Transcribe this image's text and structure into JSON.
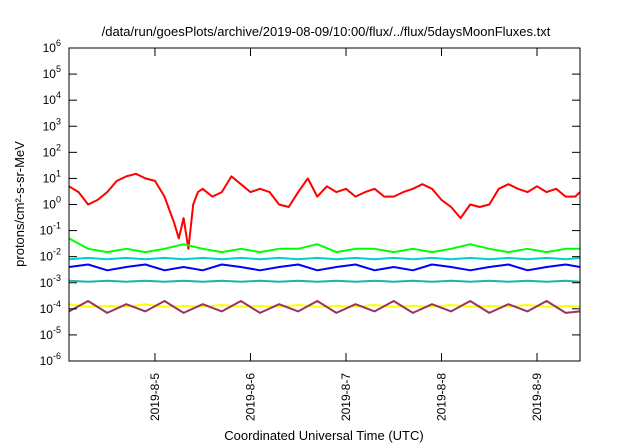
{
  "chart_data": {
    "type": "line",
    "title": "/data/run/goesPlots/archive/2019-08-09/10:00/flux/../flux/5daysMoonFluxes.txt",
    "xlabel": "Coordinated Universal Time (UTC)",
    "ylabel": "protons/cm²-s-sr-MeV",
    "yscale": "log",
    "ylim": [
      1e-06,
      1000000.0
    ],
    "xlim": [
      4.1,
      9.45
    ],
    "x_unit": "day of August 2019",
    "xticks": [
      {
        "x": 5,
        "label": "2019-8-5"
      },
      {
        "x": 6,
        "label": "2019-8-6"
      },
      {
        "x": 7,
        "label": "2019-8-7"
      },
      {
        "x": 8,
        "label": "2019-8-8"
      },
      {
        "x": 9,
        "label": "2019-8-9"
      }
    ],
    "yticks": [
      {
        "exp": -6
      },
      {
        "exp": -5
      },
      {
        "exp": -4
      },
      {
        "exp": -3
      },
      {
        "exp": -2
      },
      {
        "exp": -1
      },
      {
        "exp": 0
      },
      {
        "exp": 1
      },
      {
        "exp": 2
      },
      {
        "exp": 3
      },
      {
        "exp": 4
      },
      {
        "exp": 5
      },
      {
        "exp": 6
      }
    ],
    "grid": false,
    "legend": "none",
    "series": [
      {
        "color": "#ff0000",
        "x": [
          4.1,
          4.2,
          4.3,
          4.4,
          4.5,
          4.6,
          4.7,
          4.8,
          4.9,
          5.0,
          5.1,
          5.2,
          5.25,
          5.3,
          5.35,
          5.4,
          5.45,
          5.5,
          5.6,
          5.7,
          5.8,
          5.9,
          6.0,
          6.1,
          6.2,
          6.3,
          6.4,
          6.5,
          6.6,
          6.7,
          6.8,
          6.9,
          7.0,
          7.1,
          7.2,
          7.3,
          7.4,
          7.5,
          7.6,
          7.7,
          7.8,
          7.9,
          8.0,
          8.1,
          8.2,
          8.3,
          8.4,
          8.5,
          8.6,
          8.7,
          8.8,
          8.9,
          9.0,
          9.1,
          9.2,
          9.3,
          9.4,
          9.45
        ],
        "y": [
          5,
          3,
          1,
          1.5,
          3,
          8,
          12,
          15,
          10,
          8,
          2,
          0.2,
          0.05,
          0.3,
          0.02,
          1,
          3,
          4,
          2,
          3,
          12,
          6,
          3,
          4,
          3,
          1,
          0.8,
          3,
          10,
          2,
          5,
          3,
          4,
          2,
          3,
          4,
          2,
          2,
          3,
          4,
          6,
          4,
          1.5,
          0.8,
          0.3,
          1,
          0.8,
          1,
          4,
          6,
          4,
          3,
          5,
          3,
          4,
          2,
          2,
          3
        ]
      },
      {
        "color": "#00ff00",
        "x": [
          4.1,
          4.3,
          4.5,
          4.7,
          4.9,
          5.1,
          5.3,
          5.5,
          5.7,
          5.9,
          6.1,
          6.3,
          6.5,
          6.7,
          6.9,
          7.1,
          7.3,
          7.5,
          7.7,
          7.9,
          8.1,
          8.3,
          8.5,
          8.7,
          8.9,
          9.1,
          9.3,
          9.45
        ],
        "y": [
          0.05,
          0.02,
          0.015,
          0.02,
          0.015,
          0.02,
          0.03,
          0.02,
          0.015,
          0.02,
          0.015,
          0.02,
          0.02,
          0.03,
          0.015,
          0.02,
          0.02,
          0.015,
          0.02,
          0.015,
          0.02,
          0.03,
          0.02,
          0.015,
          0.02,
          0.015,
          0.02,
          0.02
        ]
      },
      {
        "color": "#00ced1",
        "x": [
          4.1,
          4.3,
          4.5,
          4.7,
          4.9,
          5.1,
          5.3,
          5.5,
          5.7,
          5.9,
          6.1,
          6.3,
          6.5,
          6.7,
          6.9,
          7.1,
          7.3,
          7.5,
          7.7,
          7.9,
          8.1,
          8.3,
          8.5,
          8.7,
          8.9,
          9.1,
          9.3,
          9.45
        ],
        "y": [
          0.008,
          0.009,
          0.008,
          0.009,
          0.008,
          0.009,
          0.008,
          0.009,
          0.008,
          0.009,
          0.008,
          0.009,
          0.008,
          0.009,
          0.008,
          0.009,
          0.008,
          0.009,
          0.008,
          0.009,
          0.008,
          0.009,
          0.008,
          0.009,
          0.008,
          0.009,
          0.008,
          0.009
        ]
      },
      {
        "color": "#0000ff",
        "x": [
          4.1,
          4.3,
          4.5,
          4.7,
          4.9,
          5.1,
          5.3,
          5.5,
          5.7,
          5.9,
          6.1,
          6.3,
          6.5,
          6.7,
          6.9,
          7.1,
          7.3,
          7.5,
          7.7,
          7.9,
          8.1,
          8.3,
          8.5,
          8.7,
          8.9,
          9.1,
          9.3,
          9.45
        ],
        "y": [
          0.004,
          0.005,
          0.003,
          0.004,
          0.005,
          0.003,
          0.004,
          0.003,
          0.005,
          0.004,
          0.003,
          0.004,
          0.005,
          0.003,
          0.004,
          0.005,
          0.003,
          0.004,
          0.003,
          0.005,
          0.004,
          0.003,
          0.004,
          0.005,
          0.003,
          0.004,
          0.005,
          0.004
        ]
      },
      {
        "color": "#20b2aa",
        "x": [
          4.1,
          4.3,
          4.5,
          4.7,
          4.9,
          5.1,
          5.3,
          5.5,
          5.7,
          5.9,
          6.1,
          6.3,
          6.5,
          6.7,
          6.9,
          7.1,
          7.3,
          7.5,
          7.7,
          7.9,
          8.1,
          8.3,
          8.5,
          8.7,
          8.9,
          9.1,
          9.3,
          9.45
        ],
        "y": [
          0.0012,
          0.0011,
          0.0012,
          0.0011,
          0.0012,
          0.0011,
          0.0012,
          0.0011,
          0.0012,
          0.0011,
          0.0012,
          0.0011,
          0.0012,
          0.0011,
          0.0012,
          0.0011,
          0.0012,
          0.0011,
          0.0012,
          0.0011,
          0.0012,
          0.0011,
          0.0012,
          0.0011,
          0.0012,
          0.0011,
          0.0012,
          0.0011
        ]
      },
      {
        "color": "#ffff00",
        "x": [
          4.1,
          4.3,
          4.5,
          4.7,
          4.9,
          5.1,
          5.3,
          5.5,
          5.7,
          5.9,
          6.1,
          6.3,
          6.5,
          6.7,
          6.9,
          7.1,
          7.3,
          7.5,
          7.7,
          7.9,
          8.1,
          8.3,
          8.5,
          8.7,
          8.9,
          9.1,
          9.3,
          9.45
        ],
        "y": [
          0.00015,
          0.00012,
          0.00013,
          0.00012,
          0.00015,
          0.00012,
          0.00013,
          0.00012,
          0.00014,
          0.00012,
          0.00013,
          0.00012,
          0.00014,
          0.00012,
          0.00013,
          0.00012,
          0.00014,
          0.00012,
          0.00013,
          0.00012,
          0.00014,
          0.00012,
          0.00013,
          0.00012,
          0.00014,
          0.00012,
          0.00013,
          0.00012
        ]
      },
      {
        "color": "#993366",
        "x": [
          4.1,
          4.3,
          4.5,
          4.7,
          4.9,
          5.1,
          5.3,
          5.5,
          5.7,
          5.9,
          6.1,
          6.3,
          6.5,
          6.7,
          6.9,
          7.1,
          7.3,
          7.5,
          7.7,
          7.9,
          8.1,
          8.3,
          8.5,
          8.7,
          8.9,
          9.1,
          9.3,
          9.45
        ],
        "y": [
          8e-05,
          0.0002,
          7e-05,
          0.00015,
          8e-05,
          0.0002,
          7e-05,
          0.00015,
          8e-05,
          0.0002,
          7e-05,
          0.00015,
          8e-05,
          0.0002,
          7e-05,
          0.00015,
          8e-05,
          0.0002,
          7e-05,
          0.00015,
          8e-05,
          0.0002,
          7e-05,
          0.00015,
          8e-05,
          0.0002,
          7e-05,
          8e-05
        ]
      }
    ]
  }
}
